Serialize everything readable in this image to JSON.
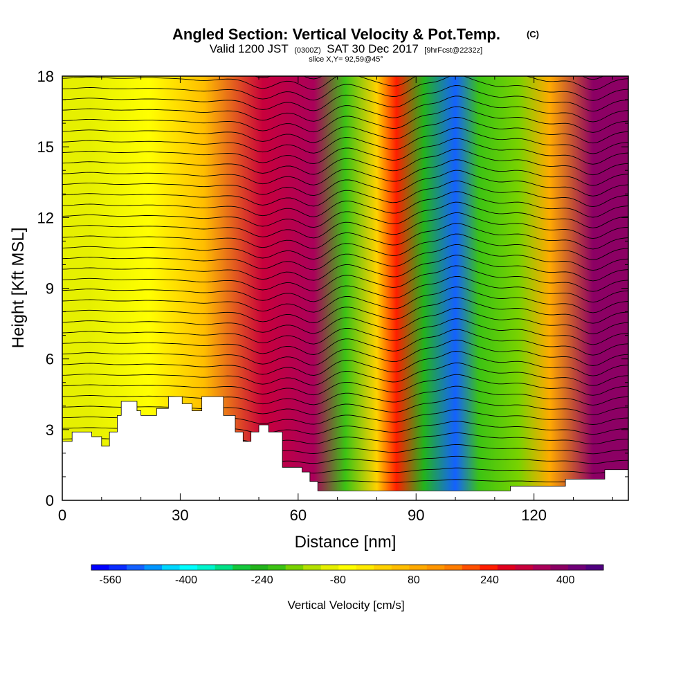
{
  "title": {
    "main": "Angled Section: Vertical Velocity & Pot.Temp.",
    "main_suffix": "(C)",
    "valid_prefix": "Valid 1200 JST",
    "valid_zulu": "(0300Z)",
    "valid_date": "SAT 30 Dec 2017",
    "valid_fcst": "[9hrFcst@2232z]",
    "slice": "slice X,Y= 92,59@45°"
  },
  "chart_data": {
    "type": "heatmap",
    "xlabel": "Distance [nm]",
    "ylabel": "Height [Kft MSL]",
    "xlim": [
      0,
      144
    ],
    "ylim": [
      0,
      18
    ],
    "x_ticks": [
      0,
      30,
      60,
      90,
      120
    ],
    "x_tick_labels": [
      "0",
      "30",
      "60",
      "90",
      "120"
    ],
    "y_ticks": [
      0,
      3,
      6,
      9,
      12,
      15,
      18
    ],
    "y_tick_labels": [
      "0",
      "3",
      "6",
      "9",
      "12",
      "15",
      "18"
    ],
    "shaded_field": "Vertical Velocity [cm/s]",
    "contour_field": "Pot.Temp. (C)",
    "velocity_bands": [
      {
        "center_nm": 7,
        "value": -60
      },
      {
        "center_nm": 22,
        "value": -30
      },
      {
        "center_nm": 36,
        "value": 80
      },
      {
        "center_nm": 51,
        "value": 380
      },
      {
        "center_nm": 64,
        "value": 430
      },
      {
        "center_nm": 72,
        "value": -200
      },
      {
        "center_nm": 80,
        "value": 60
      },
      {
        "center_nm": 85,
        "value": 280
      },
      {
        "center_nm": 92,
        "value": -210
      },
      {
        "center_nm": 100,
        "value": -500
      },
      {
        "center_nm": 106,
        "value": -200
      },
      {
        "center_nm": 116,
        "value": -140
      },
      {
        "center_nm": 124,
        "value": 120
      },
      {
        "center_nm": 135,
        "value": 440
      }
    ],
    "terrain_kft": [
      {
        "x": 0,
        "h": 2.5
      },
      {
        "x": 2.5,
        "h": 2.9
      },
      {
        "x": 7.5,
        "h": 2.7
      },
      {
        "x": 10,
        "h": 2.3
      },
      {
        "x": 12,
        "h": 2.9
      },
      {
        "x": 14,
        "h": 3.6
      },
      {
        "x": 15,
        "h": 4.2
      },
      {
        "x": 19,
        "h": 3.8
      },
      {
        "x": 20,
        "h": 3.6
      },
      {
        "x": 24,
        "h": 3.9
      },
      {
        "x": 27,
        "h": 4.4
      },
      {
        "x": 30.5,
        "h": 4.1
      },
      {
        "x": 33,
        "h": 3.8
      },
      {
        "x": 35.5,
        "h": 4.4
      },
      {
        "x": 41,
        "h": 3.6
      },
      {
        "x": 44,
        "h": 2.9
      },
      {
        "x": 46,
        "h": 2.5
      },
      {
        "x": 48,
        "h": 2.9
      },
      {
        "x": 50,
        "h": 3.2
      },
      {
        "x": 52.5,
        "h": 2.9
      },
      {
        "x": 56,
        "h": 1.4
      },
      {
        "x": 61,
        "h": 1.2
      },
      {
        "x": 63,
        "h": 0.8
      },
      {
        "x": 65,
        "h": 0.4
      },
      {
        "x": 113,
        "h": 0.4
      },
      {
        "x": 114,
        "h": 0.6
      },
      {
        "x": 128,
        "h": 0.9
      },
      {
        "x": 138,
        "h": 1.3
      },
      {
        "x": 144,
        "h": 1.3
      }
    ],
    "colorbar": {
      "label": "Vertical Velocity [cm/s]",
      "min": -600,
      "max": 480,
      "step": 40,
      "tick_values": [
        -560,
        -400,
        -240,
        -80,
        80,
        240,
        400
      ],
      "tick_labels": [
        "-560",
        "-400",
        "-240",
        "-80",
        "80",
        "240",
        "400"
      ],
      "colors": [
        "#0000ff",
        "#0a2cff",
        "#1461ff",
        "#0096ff",
        "#00d7ff",
        "#00ffff",
        "#00f5cd",
        "#00e187",
        "#15c83c",
        "#22b41c",
        "#3cc314",
        "#78d200",
        "#b4e100",
        "#e6f000",
        "#ffff00",
        "#ffeb00",
        "#ffd200",
        "#ffbe00",
        "#ffaa00",
        "#ff9600",
        "#ff7d00",
        "#ff5000",
        "#ff1e00",
        "#e1001e",
        "#c8003c",
        "#aa005a",
        "#8c0064",
        "#700078",
        "#500080"
      ]
    }
  }
}
